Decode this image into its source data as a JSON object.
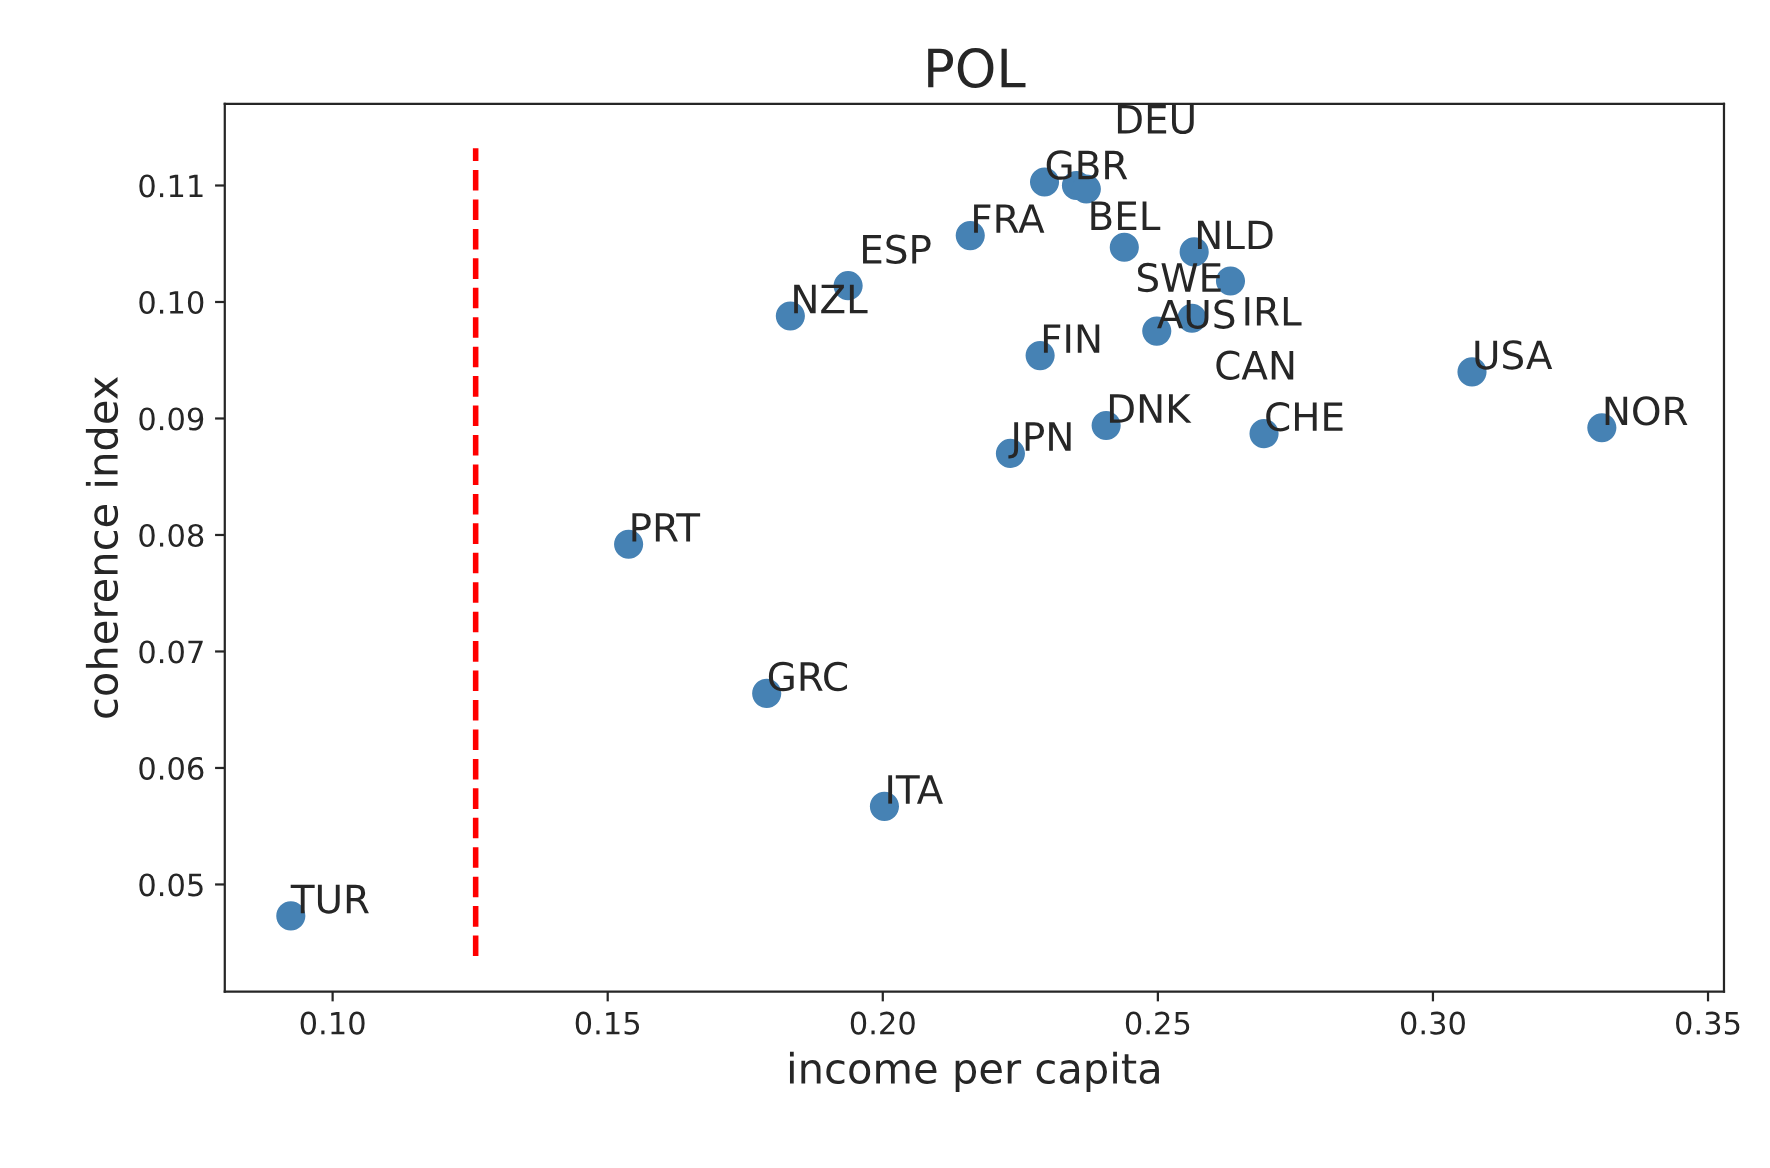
{
  "chart_data": {
    "type": "scatter",
    "title": "POL",
    "xlabel": "income per capita",
    "ylabel": "coherence index",
    "x": [
      0.0924,
      0.1538,
      0.1789,
      0.2003,
      0.1832,
      0.1937,
      0.2159,
      0.2294,
      0.2352,
      0.237,
      0.2286,
      0.2232,
      0.2406,
      0.2439,
      0.2566,
      0.2632,
      0.2498,
      0.2562,
      0.3071,
      0.3307,
      0.2693
    ],
    "series": [
      {
        "color": "#4682b4",
        "values": [
          0.0473,
          0.0792,
          0.0664,
          0.0567,
          0.0988,
          0.1014,
          0.1057,
          0.1103,
          0.11,
          0.1097,
          0.0954,
          0.087,
          0.0894,
          0.1047,
          0.1043,
          0.1018,
          0.0975,
          0.0986,
          0.094,
          0.0892,
          0.0887
        ]
      }
    ],
    "annotations": [
      {
        "text": "TUR",
        "x": 0.0924,
        "y": 0.0473
      },
      {
        "text": "PRT",
        "x": 0.1538,
        "y": 0.0792
      },
      {
        "text": "GRC",
        "x": 0.1789,
        "y": 0.0664
      },
      {
        "text": "ITA",
        "x": 0.2003,
        "y": 0.0567
      },
      {
        "text": "NZL",
        "x": 0.1832,
        "y": 0.0988
      },
      {
        "text": "ESP",
        "x": 0.1937,
        "y": 0.1014
      },
      {
        "text": "FRA",
        "x": 0.2159,
        "y": 0.1057
      },
      {
        "text": "GBR",
        "x": 0.2294,
        "y": 0.1103
      },
      {
        "text": "BEL",
        "x": 0.2352,
        "y": 0.11
      },
      {
        "text": "DEU",
        "x": 0.237,
        "y": 0.1097
      },
      {
        "text": "FIN",
        "x": 0.2286,
        "y": 0.0954
      },
      {
        "text": "JPN",
        "x": 0.2232,
        "y": 0.087
      },
      {
        "text": "DNK",
        "x": 0.2406,
        "y": 0.0894
      },
      {
        "text": "SWE",
        "x": 0.2439,
        "y": 0.1047
      },
      {
        "text": "NLD",
        "x": 0.2566,
        "y": 0.1043
      },
      {
        "text": "IRL",
        "x": 0.2632,
        "y": 0.1018
      },
      {
        "text": "AUS",
        "x": 0.2498,
        "y": 0.0975
      },
      {
        "text": "CAN",
        "x": 0.2562,
        "y": 0.0986
      },
      {
        "text": "USA",
        "x": 0.3071,
        "y": 0.094
      },
      {
        "text": "NOR",
        "x": 0.3307,
        "y": 0.0892
      },
      {
        "text": "CHE",
        "x": 0.2693,
        "y": 0.0887
      }
    ],
    "ref_lines": [
      {
        "axis": "x",
        "value": 0.126,
        "color": "#ff0000",
        "line_style": "dashed"
      }
    ],
    "xlim": [
      0.0804,
      0.3529
    ],
    "ylim": [
      0.0408,
      0.117
    ],
    "xticks": [
      {
        "value": 0.1,
        "label": "0.10"
      },
      {
        "value": 0.15,
        "label": "0.15"
      },
      {
        "value": 0.2,
        "label": "0.20"
      },
      {
        "value": 0.25,
        "label": "0.25"
      },
      {
        "value": 0.3,
        "label": "0.30"
      },
      {
        "value": 0.35,
        "label": "0.35"
      }
    ],
    "yticks": [
      {
        "value": 0.05,
        "label": "0.05"
      },
      {
        "value": 0.06,
        "label": "0.06"
      },
      {
        "value": 0.07,
        "label": "0.07"
      },
      {
        "value": 0.08,
        "label": "0.08"
      },
      {
        "value": 0.09,
        "label": "0.09"
      },
      {
        "value": 0.1,
        "label": "0.10"
      },
      {
        "value": 0.11,
        "label": "0.11"
      }
    ],
    "grid": false,
    "legend": false,
    "marker": "circle"
  }
}
